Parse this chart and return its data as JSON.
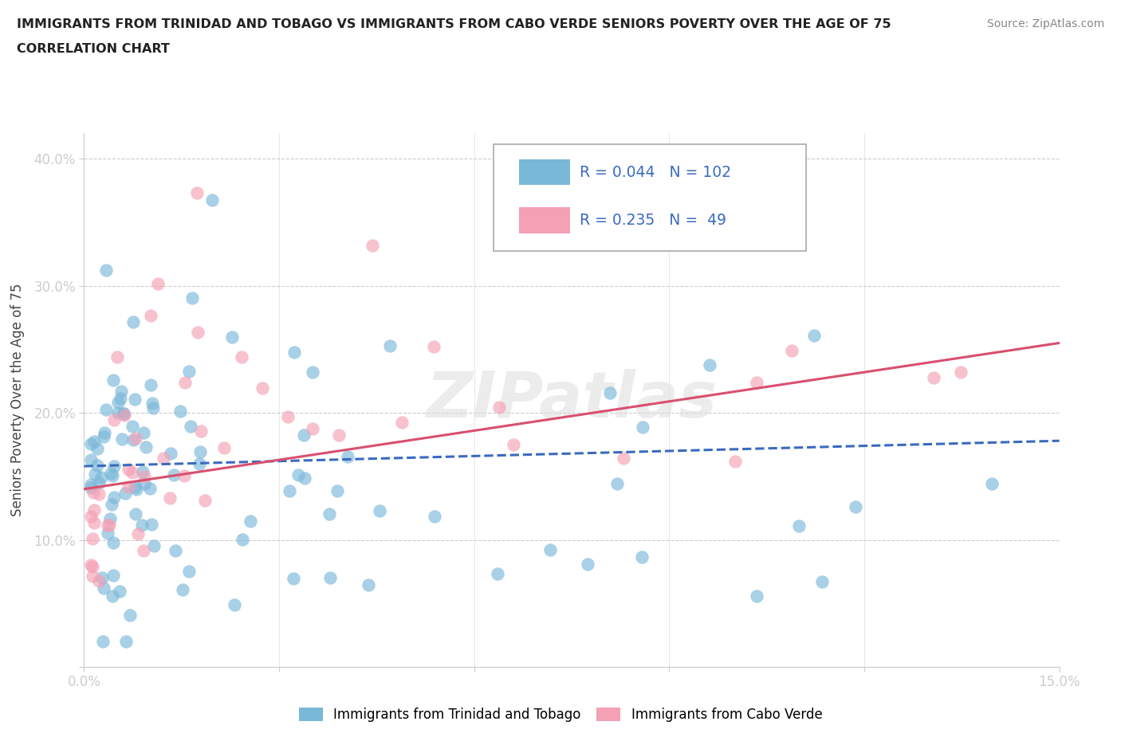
{
  "title_line1": "IMMIGRANTS FROM TRINIDAD AND TOBAGO VS IMMIGRANTS FROM CABO VERDE SENIORS POVERTY OVER THE AGE OF 75",
  "title_line2": "CORRELATION CHART",
  "source": "Source: ZipAtlas.com",
  "ylabel": "Seniors Poverty Over the Age of 75",
  "xlim": [
    0.0,
    0.15
  ],
  "ylim": [
    0.0,
    0.42
  ],
  "color_tt": "#7ab8d9",
  "color_cv": "#f4a0b5",
  "trendline_tt_color": "#3a6abf",
  "trendline_cv_color": "#d94f6e",
  "R_tt": 0.044,
  "N_tt": 102,
  "R_cv": 0.235,
  "N_cv": 49,
  "legend_label_tt": "Immigrants from Trinidad and Tobago",
  "legend_label_cv": "Immigrants from Cabo Verde",
  "tt_trendline": [
    0.0,
    0.158,
    0.15,
    0.178
  ],
  "cv_trendline": [
    0.0,
    0.14,
    0.15,
    0.255
  ]
}
